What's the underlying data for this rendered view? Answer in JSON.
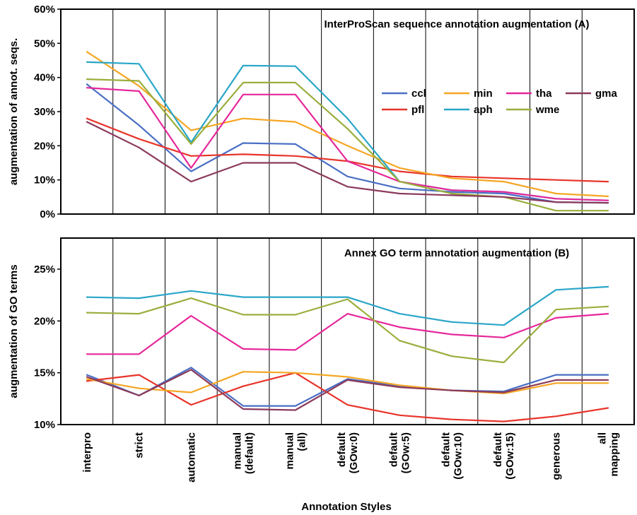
{
  "xlabel": "Annotation Styles",
  "categories": [
    [
      "interpro"
    ],
    [
      "strict"
    ],
    [
      "automatic"
    ],
    [
      "manual",
      "(default)"
    ],
    [
      "manual",
      "(all)"
    ],
    [
      "default",
      "(GOw:0)"
    ],
    [
      "default",
      "(GOw:5)"
    ],
    [
      "default",
      "(GOw:10)"
    ],
    [
      "default",
      "(GOw:15)"
    ],
    [
      "generous"
    ],
    [
      "all",
      "mapping"
    ]
  ],
  "colors": {
    "ccl": "#4a6fc4",
    "pfl": "#e8342a",
    "min": "#f5a623",
    "aph": "#2aa6c8",
    "tha": "#e6279a",
    "wme": "#9aae3c",
    "gma": "#8b3a5c"
  },
  "chart_data": [
    {
      "type": "line",
      "title": "InterProScan sequence annotation augmentation (A)",
      "ylabel": "augmentation of annot. seqs.",
      "ylim": [
        0,
        60
      ],
      "yticks": [
        "0%",
        "10%",
        "20%",
        "30%",
        "40%",
        "50%",
        "60%"
      ],
      "ytick_values": [
        0,
        10,
        20,
        30,
        40,
        50,
        60
      ],
      "grid": "vertical",
      "legend": {
        "placement": "right",
        "rows": [
          [
            "ccl",
            "min",
            "tha",
            "gma"
          ],
          [
            "pfl",
            "aph",
            "wme"
          ]
        ]
      },
      "series": [
        {
          "name": "ccl",
          "values": [
            38,
            26,
            12.5,
            20.8,
            20.5,
            11,
            7.5,
            6.5,
            6,
            3.5,
            3.3
          ]
        },
        {
          "name": "pfl",
          "values": [
            28,
            22,
            17,
            17.5,
            17,
            15.5,
            12.5,
            11,
            10.5,
            10,
            9.5
          ]
        },
        {
          "name": "min",
          "values": [
            47.5,
            37.5,
            24.5,
            28,
            27,
            20,
            13.5,
            10.5,
            9.5,
            6,
            5.2
          ]
        },
        {
          "name": "aph",
          "values": [
            44.5,
            44,
            21,
            43.5,
            43.3,
            28,
            9.5,
            7,
            6.5,
            4.5,
            4
          ]
        },
        {
          "name": "tha",
          "values": [
            37,
            36,
            13.5,
            35,
            35,
            15.5,
            9.5,
            7,
            6.5,
            4.5,
            4
          ]
        },
        {
          "name": "wme",
          "values": [
            39.5,
            39,
            20.5,
            38.5,
            38.5,
            25,
            9.5,
            6,
            5,
            1,
            1
          ]
        },
        {
          "name": "gma",
          "values": [
            27,
            19.5,
            9.5,
            15,
            15,
            8,
            6,
            5.5,
            5,
            3.5,
            3.3
          ]
        }
      ]
    },
    {
      "type": "line",
      "title": "Annex GO term annotation augmentation (B)",
      "ylabel": "augmentation of GO terms",
      "ylim": [
        10,
        28
      ],
      "yticks": [
        "10%",
        "15%",
        "20%",
        "25%"
      ],
      "ytick_values": [
        10,
        15,
        20,
        25
      ],
      "grid": "vertical",
      "series": [
        {
          "name": "ccl",
          "values": [
            14.8,
            12.8,
            15.5,
            11.8,
            11.8,
            14.4,
            13.7,
            13.3,
            13.2,
            14.8,
            14.8
          ]
        },
        {
          "name": "pfl",
          "values": [
            14.2,
            14.8,
            11.9,
            13.7,
            15.0,
            11.9,
            10.9,
            10.5,
            10.3,
            10.8,
            11.6
          ]
        },
        {
          "name": "min",
          "values": [
            14.4,
            13.5,
            13.1,
            15.1,
            15.0,
            14.6,
            13.8,
            13.3,
            13.0,
            14.0,
            14.0
          ]
        },
        {
          "name": "aph",
          "values": [
            22.3,
            22.2,
            22.9,
            22.3,
            22.3,
            22.3,
            20.7,
            19.9,
            19.6,
            23.0,
            23.3
          ]
        },
        {
          "name": "tha",
          "values": [
            16.8,
            16.8,
            20.5,
            17.3,
            17.2,
            20.7,
            19.4,
            18.7,
            18.4,
            20.3,
            20.7
          ]
        },
        {
          "name": "wme",
          "values": [
            20.8,
            20.7,
            22.2,
            20.6,
            20.6,
            22.1,
            18.1,
            16.6,
            16.0,
            21.1,
            21.4
          ]
        },
        {
          "name": "gma",
          "values": [
            14.6,
            12.8,
            15.3,
            11.5,
            11.4,
            14.3,
            13.6,
            13.3,
            13.1,
            14.3,
            14.3
          ]
        }
      ]
    }
  ]
}
